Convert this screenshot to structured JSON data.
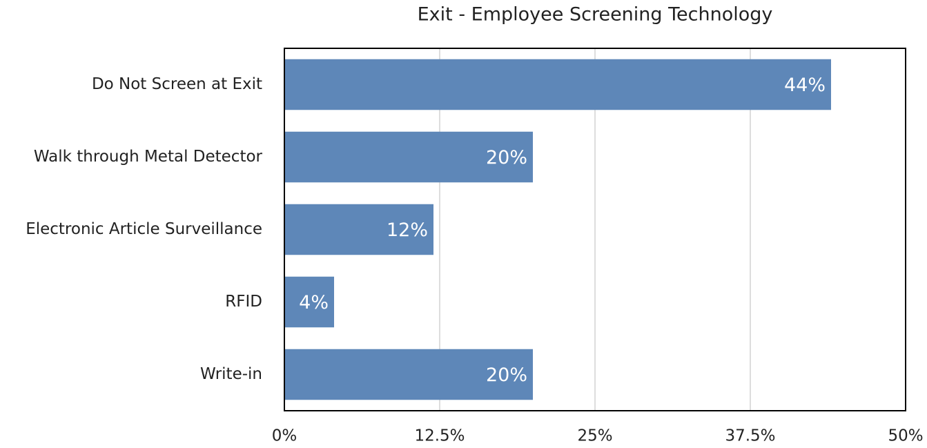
{
  "chart_data": {
    "type": "bar",
    "orientation": "horizontal",
    "title": "Exit - Employee Screening Technology",
    "categories": [
      "Do Not Screen at Exit",
      "Walk through Metal Detector",
      "Electronic Article Surveillance",
      "RFID",
      "Write-in"
    ],
    "values": [
      44,
      20,
      12,
      4,
      20
    ],
    "value_labels": [
      "44%",
      "20%",
      "12%",
      "4%",
      "20%"
    ],
    "color": "#5e87b8",
    "xlim": [
      0,
      50
    ],
    "xticks": [
      {
        "value": 0,
        "label": "0%"
      },
      {
        "value": 12.5,
        "label": "12.5%"
      },
      {
        "value": 25,
        "label": "25%"
      },
      {
        "value": 37.5,
        "label": "37.5%"
      },
      {
        "value": 50,
        "label": "50%"
      }
    ],
    "grid": true
  }
}
